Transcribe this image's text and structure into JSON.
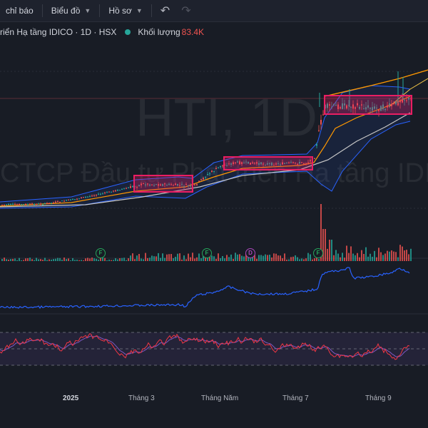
{
  "toolbar": {
    "indicators": "chỉ báo",
    "chart_type": "Biểu đồ",
    "profile": "Hồ sơ"
  },
  "legend": {
    "title": "riển Hạ tầng IDICO · 1D · HSX",
    "volume_label": "Khối lượng",
    "volume_value": "83.4K"
  },
  "watermark": {
    "symbol": "HTI, 1D",
    "company": "CTCP Đầu tư Phát triển Hạ tầng IDICO"
  },
  "x_axis": {
    "labels": [
      "2025",
      "Tháng 3",
      "Tháng Năm",
      "Tháng 7",
      "Tháng 9"
    ]
  },
  "events": [
    "F",
    "F",
    "D",
    "F"
  ],
  "colors": {
    "up": "#26a69a",
    "down": "#ef5350",
    "box": "#e91e63",
    "ma_orange": "#ff9800",
    "ma_white": "#c8c8c8",
    "line_blue": "#2962ff",
    "rsi_purple": "#7e57c2",
    "rsi_red": "#f23645"
  }
}
